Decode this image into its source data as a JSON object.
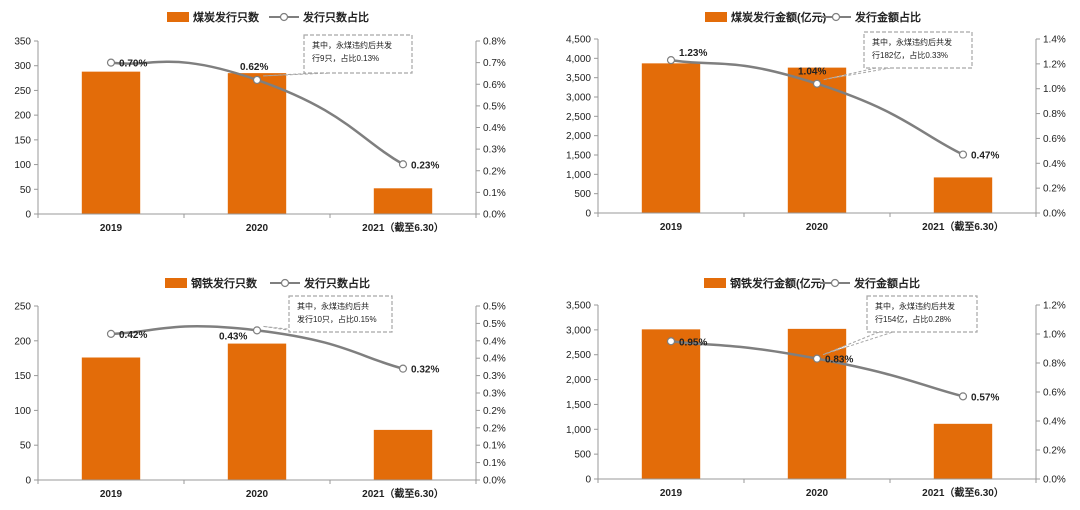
{
  "colors": {
    "bar": "#E36C09",
    "line": "#7F7F7F",
    "axis": "#999999",
    "note_border": "#A6A6A6"
  },
  "chart_data": [
    {
      "type": "bar",
      "categories": [
        "2019",
        "2020",
        "2021（截至6.30）"
      ],
      "series": [
        {
          "name": "煤炭发行只数",
          "type": "bar",
          "axis": "left",
          "values": [
            288,
            285,
            52
          ]
        },
        {
          "name": "发行只数占比",
          "type": "line",
          "axis": "right",
          "values": [
            0.7,
            0.62,
            0.23
          ],
          "labels": [
            "0.70%",
            "0.62%",
            "0.23%"
          ]
        }
      ],
      "ylim_left": [
        0,
        350
      ],
      "yticks_left": [
        0,
        50,
        100,
        150,
        200,
        250,
        300,
        350
      ],
      "yticklabels_left": [
        "0",
        "50",
        "100",
        "150",
        "200",
        "250",
        "300",
        "350"
      ],
      "ylim_right": [
        0,
        0.8
      ],
      "yticks_right": [
        0,
        0.1,
        0.2,
        0.3,
        0.4,
        0.5,
        0.6,
        0.7,
        0.8
      ],
      "yticklabels_right": [
        "0.0%",
        "0.1%",
        "0.2%",
        "0.3%",
        "0.4%",
        "0.5%",
        "0.6%",
        "0.7%",
        "0.8%"
      ],
      "annotation": {
        "point_index": 1,
        "lines": [
          "其中，永煤违约后共发",
          "行9只，占比0.13%"
        ]
      },
      "legend": "top-center"
    },
    {
      "type": "bar",
      "categories": [
        "2019",
        "2020",
        "2021（截至6.30）"
      ],
      "series": [
        {
          "name": "煤炭发行金额(亿元)",
          "type": "bar",
          "axis": "left",
          "values": [
            3870,
            3760,
            920
          ]
        },
        {
          "name": "发行金额占比",
          "type": "line",
          "axis": "right",
          "values": [
            1.23,
            1.04,
            0.47
          ],
          "labels": [
            "1.23%",
            "1.04%",
            "0.47%"
          ]
        }
      ],
      "ylim_left": [
        0,
        4500
      ],
      "yticks_left": [
        0,
        500,
        1000,
        1500,
        2000,
        2500,
        3000,
        3500,
        4000,
        4500
      ],
      "yticklabels_left": [
        "0",
        "500",
        "1,000",
        "1,500",
        "2,000",
        "2,500",
        "3,000",
        "3,500",
        "4,000",
        "4,500"
      ],
      "ylim_right": [
        0,
        1.4
      ],
      "yticks_right": [
        0,
        0.2,
        0.4,
        0.6,
        0.8,
        1.0,
        1.2,
        1.4
      ],
      "yticklabels_right": [
        "0.0%",
        "0.2%",
        "0.4%",
        "0.6%",
        "0.8%",
        "1.0%",
        "1.2%",
        "1.4%"
      ],
      "annotation": {
        "point_index": 1,
        "lines": [
          "其中，永煤违约后共发",
          "行182亿，占比0.33%"
        ]
      },
      "legend": "top-center"
    },
    {
      "type": "bar",
      "categories": [
        "2019",
        "2020",
        "2021（截至6.30）"
      ],
      "series": [
        {
          "name": "钢铁发行只数",
          "type": "bar",
          "axis": "left",
          "values": [
            176,
            196,
            72
          ]
        },
        {
          "name": "发行只数占比",
          "type": "line",
          "axis": "right",
          "values": [
            0.42,
            0.43,
            0.32
          ],
          "labels": [
            "0.42%",
            "0.43%",
            "0.32%"
          ]
        }
      ],
      "ylim_left": [
        0,
        250
      ],
      "yticks_left": [
        0,
        50,
        100,
        150,
        200,
        250
      ],
      "yticklabels_left": [
        "0",
        "50",
        "100",
        "150",
        "200",
        "250"
      ],
      "ylim_right": [
        0,
        0.5
      ],
      "yticks_right": [
        0,
        0.05,
        0.1,
        0.15,
        0.2,
        0.25,
        0.3,
        0.35,
        0.4,
        0.45,
        0.5
      ],
      "yticklabels_right": [
        "0.0%",
        "0.1%",
        "0.1%",
        "0.2%",
        "0.2%",
        "0.3%",
        "0.3%",
        "0.4%",
        "0.4%",
        "0.5%",
        "0.5%"
      ],
      "annotation": {
        "point_index": 1,
        "lines": [
          "其中，永煤违约后共",
          "发行10只，占比0.15%"
        ]
      },
      "legend": "top-center"
    },
    {
      "type": "bar",
      "categories": [
        "2019",
        "2020",
        "2021（截至6.30）"
      ],
      "series": [
        {
          "name": "钢铁发行金额(亿元)",
          "type": "bar",
          "axis": "left",
          "values": [
            3010,
            3020,
            1110
          ]
        },
        {
          "name": "发行金额占比",
          "type": "line",
          "axis": "right",
          "values": [
            0.95,
            0.83,
            0.57
          ],
          "labels": [
            "0.95%",
            "0.83%",
            "0.57%"
          ]
        }
      ],
      "ylim_left": [
        0,
        3500
      ],
      "yticks_left": [
        0,
        500,
        1000,
        1500,
        2000,
        2500,
        3000,
        3500
      ],
      "yticklabels_left": [
        "0",
        "500",
        "1,000",
        "1,500",
        "2,000",
        "2,500",
        "3,000",
        "3,500"
      ],
      "ylim_right": [
        0,
        1.2
      ],
      "yticks_right": [
        0,
        0.2,
        0.4,
        0.6,
        0.8,
        1.0,
        1.2
      ],
      "yticklabels_right": [
        "0.0%",
        "0.2%",
        "0.4%",
        "0.6%",
        "0.8%",
        "1.0%",
        "1.2%"
      ],
      "annotation": {
        "point_index": 1,
        "lines": [
          "其中，永煤违约后共发",
          "行154亿，占比0.28%"
        ]
      },
      "legend": "top-center"
    }
  ]
}
